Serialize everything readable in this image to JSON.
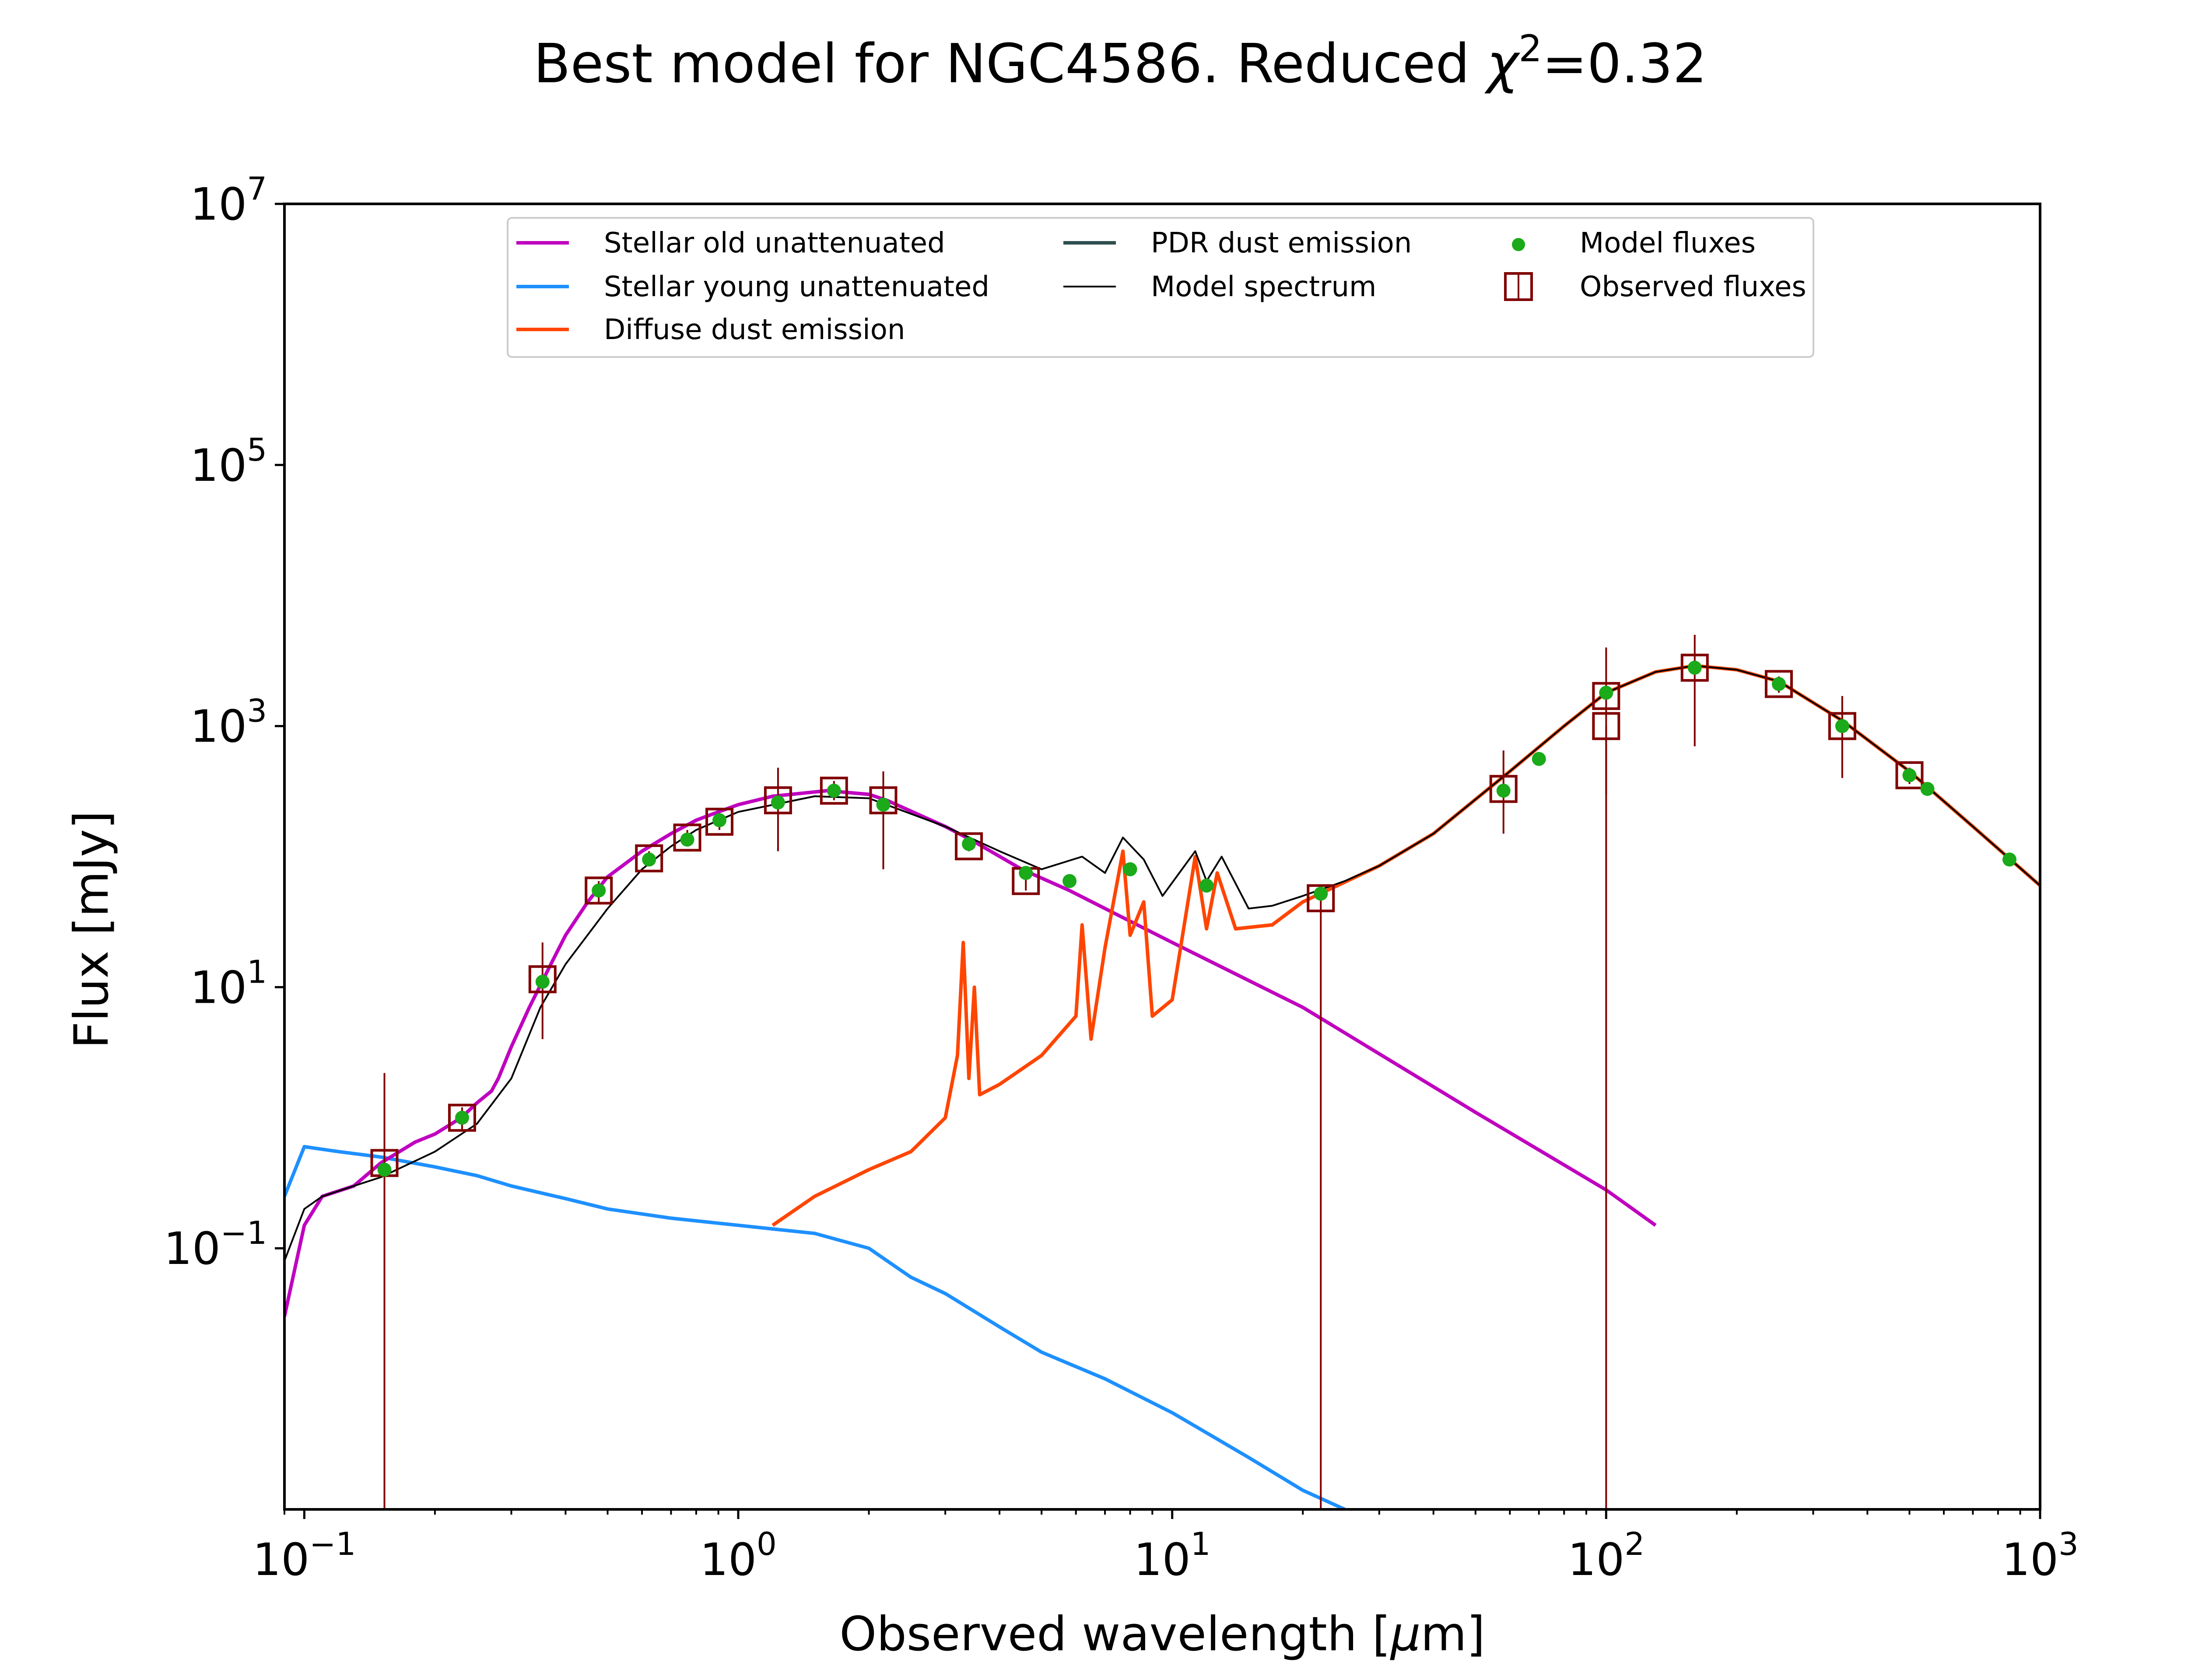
{
  "chart_data": {
    "type": "line",
    "title": "Best model for NGC4586. Reduced χ²=0.32",
    "title_parts": {
      "main": "Best model for NGC4586. Reduced ",
      "chi": "χ",
      "sup": "2",
      "value": "=0.32"
    },
    "xlabel": "Observed wavelength [μm]",
    "xlabel_parts": {
      "before": "Observed wavelength [",
      "mu": "μ",
      "after": "m]"
    },
    "ylabel": "Flux [mJy]",
    "xscale": "log",
    "yscale": "log",
    "xlim": [
      0.09,
      1000
    ],
    "ylim": [
      0.001,
      10000000
    ],
    "x_ticks": [
      {
        "value": 0.1,
        "base": "10",
        "exp": "−1"
      },
      {
        "value": 1,
        "base": "10",
        "exp": "0"
      },
      {
        "value": 10,
        "base": "10",
        "exp": "1"
      },
      {
        "value": 100,
        "base": "10",
        "exp": "2"
      },
      {
        "value": 1000,
        "base": "10",
        "exp": "3"
      }
    ],
    "y_ticks": [
      {
        "value": 0.1,
        "base": "10",
        "exp": "−1"
      },
      {
        "value": 10,
        "base": "10",
        "exp": "1"
      },
      {
        "value": 1000,
        "base": "10",
        "exp": "3"
      },
      {
        "value": 100000,
        "base": "10",
        "exp": "5"
      },
      {
        "value": 10000000,
        "base": "10",
        "exp": "7"
      }
    ],
    "grid": false,
    "legend_position": "top-center",
    "legend": [
      {
        "label": "Stellar old unattenuated",
        "color": "#bf00bf",
        "marker": "line"
      },
      {
        "label": "Stellar young unattenuated",
        "color": "#1e90ff",
        "marker": "line"
      },
      {
        "label": "Diffuse dust emission",
        "color": "#ff4500",
        "marker": "line"
      },
      {
        "label": "PDR dust emission",
        "color": "#2f4f4f",
        "marker": "line"
      },
      {
        "label": "Model spectrum",
        "color": "#000000",
        "marker": "thin-line"
      },
      {
        "label": "Model fluxes",
        "color": "#1aaa1a",
        "marker": "dot"
      },
      {
        "label": "Observed fluxes",
        "color": "#800000",
        "marker": "square"
      }
    ],
    "series": [
      {
        "name": "Stellar old unattenuated",
        "color": "#bf00bf",
        "x": [
          0.09,
          0.1,
          0.11,
          0.13,
          0.15,
          0.18,
          0.2,
          0.23,
          0.25,
          0.27,
          0.28,
          0.3,
          0.33,
          0.37,
          0.4,
          0.45,
          0.5,
          0.6,
          0.7,
          0.8,
          0.9,
          1.0,
          1.2,
          1.6,
          2.0,
          2.2,
          3.0,
          3.5,
          4.5,
          5.8,
          8,
          10,
          20,
          50,
          100,
          130
        ],
        "y": [
          0.03,
          0.15,
          0.25,
          0.3,
          0.45,
          0.65,
          0.75,
          1.0,
          1.3,
          1.6,
          2.0,
          3.5,
          7.0,
          15.0,
          25.0,
          45.0,
          70.0,
          110.0,
          150.0,
          190.0,
          220.0,
          250.0,
          290.0,
          320.0,
          300.0,
          270.0,
          170.0,
          130.0,
          80.0,
          55.0,
          32.0,
          22.0,
          7.0,
          1.1,
          0.28,
          0.15
        ]
      },
      {
        "name": "Stellar young unattenuated",
        "color": "#1e90ff",
        "x": [
          0.09,
          0.1,
          0.12,
          0.15,
          0.2,
          0.25,
          0.3,
          0.4,
          0.5,
          0.7,
          1.0,
          1.5,
          2.0,
          2.5,
          3.0,
          4.0,
          5.0,
          7.0,
          10,
          15,
          20,
          25
        ],
        "y": [
          0.25,
          0.6,
          0.55,
          0.5,
          0.42,
          0.36,
          0.3,
          0.24,
          0.2,
          0.17,
          0.15,
          0.13,
          0.1,
          0.06,
          0.045,
          0.025,
          0.016,
          0.01,
          0.0055,
          0.0025,
          0.0014,
          0.001
        ]
      },
      {
        "name": "Diffuse dust emission",
        "color": "#ff4500",
        "x": [
          1.2,
          1.5,
          2.0,
          2.5,
          3.0,
          3.2,
          3.3,
          3.4,
          3.5,
          3.6,
          4.0,
          5.0,
          6.0,
          6.2,
          6.5,
          7.0,
          7.7,
          8.0,
          8.6,
          9.0,
          10,
          11.3,
          12,
          12.7,
          14,
          17,
          20,
          30,
          40,
          60,
          80,
          100,
          130,
          160,
          200,
          250,
          350,
          500,
          700,
          1000
        ],
        "y": [
          0.15,
          0.25,
          0.4,
          0.55,
          1.0,
          3.0,
          22.0,
          2.0,
          10.0,
          1.5,
          1.8,
          3.0,
          6.0,
          30.0,
          4.0,
          20.0,
          110.0,
          25.0,
          45.0,
          6.0,
          8.0,
          100.0,
          28.0,
          75.0,
          28.0,
          30.0,
          45.0,
          85.0,
          150.0,
          450.0,
          1000.0,
          1800.0,
          2600.0,
          2900.0,
          2700.0,
          2200.0,
          1100.0,
          450.0,
          170.0,
          60.0
        ]
      },
      {
        "name": "PDR dust emission",
        "color": "#2f4f4f",
        "x": [],
        "y": []
      },
      {
        "name": "Model spectrum",
        "color": "#000000",
        "x": [
          0.09,
          0.1,
          0.11,
          0.13,
          0.15,
          0.2,
          0.25,
          0.3,
          0.35,
          0.4,
          0.5,
          0.6,
          0.7,
          0.8,
          1.0,
          1.5,
          2.0,
          3.0,
          4.0,
          5.0,
          6.2,
          7.0,
          7.7,
          8.6,
          9.5,
          11.3,
          12,
          13,
          15,
          17,
          20,
          25,
          30,
          40,
          60,
          80,
          100,
          130,
          160,
          200,
          250,
          350,
          500,
          700,
          1000
        ],
        "y": [
          0.08,
          0.2,
          0.25,
          0.3,
          0.35,
          0.55,
          0.9,
          2.0,
          7.0,
          15.0,
          40.0,
          80.0,
          120.0,
          160.0,
          220.0,
          290.0,
          280.0,
          170.0,
          110.0,
          80.0,
          100.0,
          75.0,
          140.0,
          95.0,
          50.0,
          110.0,
          65.0,
          100.0,
          40.0,
          42.0,
          50.0,
          65.0,
          85.0,
          150.0,
          450.0,
          1000.0,
          1800.0,
          2600.0,
          2900.0,
          2700.0,
          2200.0,
          1100.0,
          450.0,
          170.0,
          60.0
        ]
      },
      {
        "name": "Model fluxes",
        "color": "#1aaa1a",
        "x": [
          0.153,
          0.231,
          0.354,
          0.477,
          0.623,
          0.763,
          0.905,
          1.235,
          1.662,
          2.159,
          3.4,
          4.6,
          5.8,
          8.0,
          12.0,
          22.0,
          58.0,
          70.0,
          100.0,
          160.0,
          250.0,
          350.0,
          500.0,
          550.0,
          850.0
        ],
        "y": [
          0.4,
          1.0,
          11.0,
          55.0,
          95.0,
          135.0,
          190.0,
          260.0,
          320.0,
          250.0,
          125.0,
          75.0,
          65.0,
          80.0,
          60.0,
          52.0,
          320.0,
          560.0,
          1800.0,
          2800.0,
          2100.0,
          1000.0,
          420.0,
          330.0,
          95.0
        ]
      },
      {
        "name": "Observed fluxes",
        "color": "#800000",
        "x": [
          0.153,
          0.231,
          0.354,
          0.477,
          0.623,
          0.763,
          0.905,
          1.235,
          1.662,
          2.159,
          3.4,
          4.6,
          22.0,
          58.0,
          100.0,
          100.0,
          160.0,
          250.0,
          350.0,
          500.0
        ],
        "y": [
          0.45,
          1.0,
          11.5,
          55.0,
          97.0,
          140.0,
          185.0,
          270.0,
          320.0,
          270.0,
          120.0,
          65.0,
          48.0,
          330.0,
          1000.0,
          1700.0,
          2800.0,
          2100.0,
          1000.0,
          420.0
        ],
        "err_low": [
          0.001,
          0.8,
          4.0,
          45.0,
          85.0,
          120.0,
          160.0,
          110.0,
          270.0,
          80.0,
          110.0,
          55.0,
          0.001,
          150.0,
          0.001,
          300.0,
          700.0,
          1800.0,
          400.0,
          360.0
        ],
        "err_high": [
          2.2,
          1.2,
          22.0,
          65.0,
          110.0,
          160.0,
          210.0,
          480.0,
          380.0,
          450.0,
          130.0,
          80.0,
          49.0,
          650.0,
          1002.0,
          4000.0,
          5000.0,
          2400.0,
          1700.0,
          480.0
        ]
      }
    ]
  }
}
